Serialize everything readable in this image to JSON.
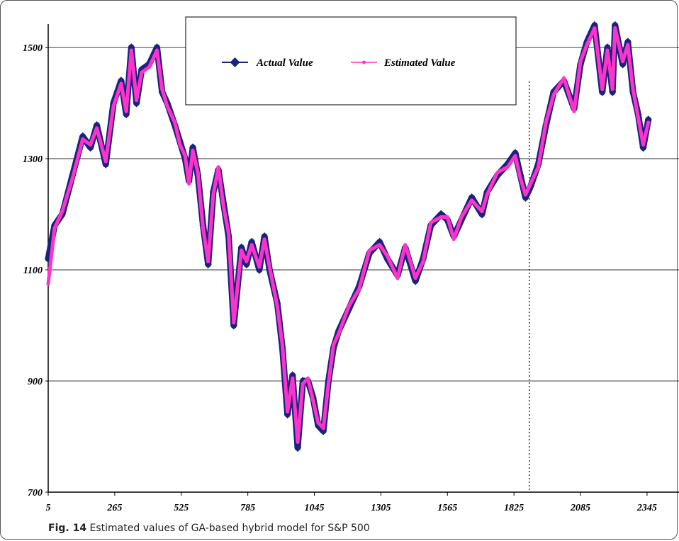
{
  "caption": {
    "label": "Fig. 14",
    "text": "Estimated values of GA-based hybrid model for S&P 500"
  },
  "chart_data": {
    "type": "line",
    "title": "",
    "xlabel": "",
    "ylabel": "",
    "xlim": [
      5,
      2420
    ],
    "ylim": [
      700,
      1560
    ],
    "x_ticks": [
      5,
      265,
      525,
      785,
      1045,
      1305,
      1565,
      1825,
      2085,
      2345
    ],
    "y_ticks": [
      700,
      900,
      1100,
      1300,
      1500
    ],
    "grid": "horizontal",
    "vertical_marker_x": 1885,
    "legend": {
      "placement": "top-center",
      "entries": [
        "Actual Value",
        "Estimated Value"
      ]
    },
    "colors": {
      "actual": "#1a237e",
      "estimated": "#ff33cc",
      "grid": "#000000"
    },
    "series": [
      {
        "name": "Actual Value",
        "x": [
          5,
          30,
          60,
          100,
          140,
          170,
          195,
          230,
          260,
          290,
          310,
          330,
          350,
          370,
          400,
          430,
          450,
          470,
          500,
          520,
          540,
          555,
          570,
          590,
          610,
          630,
          650,
          670,
          690,
          710,
          730,
          760,
          780,
          800,
          830,
          850,
          870,
          900,
          920,
          940,
          960,
          980,
          1000,
          1020,
          1040,
          1060,
          1080,
          1100,
          1120,
          1140,
          1180,
          1220,
          1260,
          1300,
          1330,
          1370,
          1400,
          1440,
          1470,
          1500,
          1540,
          1565,
          1590,
          1620,
          1660,
          1700,
          1720,
          1760,
          1800,
          1830,
          1850,
          1870,
          1890,
          1920,
          1950,
          1980,
          2020,
          2060,
          2085,
          2110,
          2140,
          2170,
          2190,
          2210,
          2220,
          2250,
          2270,
          2290,
          2310,
          2330,
          2350
        ],
        "values": [
          1120,
          1180,
          1200,
          1270,
          1340,
          1320,
          1360,
          1290,
          1400,
          1440,
          1380,
          1500,
          1400,
          1460,
          1470,
          1500,
          1420,
          1400,
          1360,
          1330,
          1300,
          1260,
          1320,
          1270,
          1180,
          1110,
          1240,
          1280,
          1220,
          1160,
          1000,
          1140,
          1110,
          1150,
          1100,
          1160,
          1100,
          1040,
          960,
          840,
          910,
          780,
          900,
          900,
          870,
          820,
          810,
          900,
          960,
          990,
          1030,
          1070,
          1130,
          1150,
          1120,
          1090,
          1140,
          1080,
          1120,
          1180,
          1200,
          1190,
          1160,
          1190,
          1230,
          1200,
          1240,
          1270,
          1290,
          1310,
          1270,
          1230,
          1250,
          1290,
          1360,
          1420,
          1440,
          1390,
          1470,
          1510,
          1540,
          1420,
          1500,
          1420,
          1540,
          1470,
          1510,
          1420,
          1380,
          1320,
          1370
        ]
      },
      {
        "name": "Estimated Value",
        "x": [
          5,
          30,
          60,
          100,
          140,
          170,
          195,
          230,
          260,
          290,
          310,
          330,
          350,
          370,
          400,
          430,
          450,
          470,
          500,
          520,
          540,
          555,
          570,
          590,
          610,
          630,
          650,
          670,
          690,
          710,
          730,
          760,
          780,
          800,
          830,
          850,
          870,
          900,
          920,
          940,
          960,
          980,
          1000,
          1020,
          1040,
          1060,
          1080,
          1100,
          1120,
          1140,
          1180,
          1220,
          1260,
          1300,
          1330,
          1370,
          1400,
          1440,
          1470,
          1500,
          1540,
          1565,
          1590,
          1620,
          1660,
          1700,
          1720,
          1760,
          1800,
          1830,
          1850,
          1870,
          1890,
          1920,
          1950,
          1980,
          2020,
          2060,
          2085,
          2110,
          2140,
          2170,
          2190,
          2210,
          2220,
          2250,
          2270,
          2290,
          2310,
          2330,
          2350
        ],
        "values": [
          1075,
          1175,
          1205,
          1265,
          1335,
          1325,
          1355,
          1295,
          1395,
          1435,
          1385,
          1495,
          1405,
          1455,
          1465,
          1495,
          1425,
          1395,
          1365,
          1325,
          1305,
          1255,
          1315,
          1275,
          1175,
          1115,
          1235,
          1285,
          1215,
          1165,
          1005,
          1135,
          1115,
          1145,
          1105,
          1155,
          1105,
          1035,
          965,
          845,
          905,
          790,
          895,
          905,
          865,
          825,
          815,
          895,
          965,
          985,
          1035,
          1065,
          1135,
          1145,
          1125,
          1085,
          1145,
          1085,
          1115,
          1185,
          1195,
          1195,
          1155,
          1195,
          1225,
          1205,
          1235,
          1275,
          1285,
          1305,
          1265,
          1235,
          1255,
          1285,
          1365,
          1415,
          1445,
          1385,
          1475,
          1505,
          1535,
          1425,
          1495,
          1425,
          1535,
          1475,
          1505,
          1425,
          1375,
          1325,
          1365
        ]
      }
    ]
  }
}
